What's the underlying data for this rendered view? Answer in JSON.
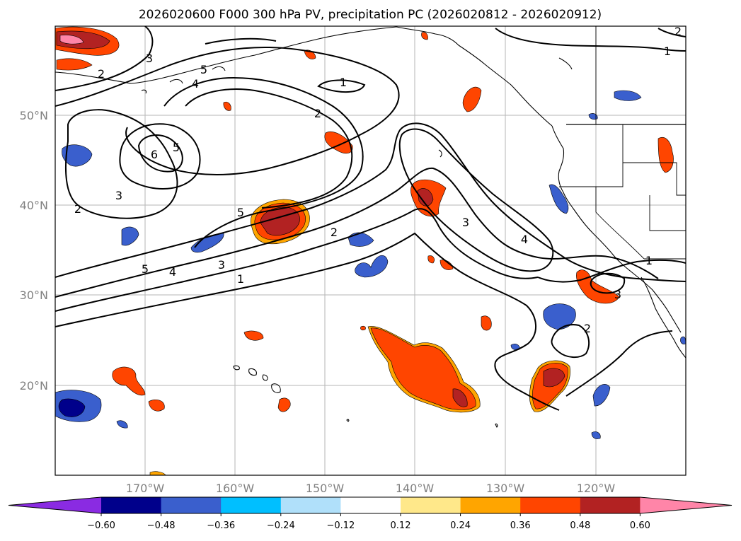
{
  "title": "2026020600 F000 300 hPa PV, precipitation PC (2026020812 - 2026020912)",
  "latitude_labels": [
    "50°N",
    "40°N",
    "30°N",
    "20°N"
  ],
  "longitude_labels": [
    "170°W",
    "160°W",
    "150°W",
    "140°W",
    "130°W",
    "120°W"
  ],
  "contour_labels": [
    "1",
    "2",
    "3",
    "4",
    "5",
    "6"
  ],
  "colorbar": {
    "ticks": [
      "−0.60",
      "−0.48",
      "−0.36",
      "−0.24",
      "−0.12",
      "0.12",
      "0.24",
      "0.36",
      "0.48",
      "0.60"
    ],
    "colors": {
      "under": "#8a2be2",
      "neg_060_048": "#00008b",
      "neg_048_036": "#3a5fcd",
      "neg_036_024": "#00bfff",
      "neg_024_012": "#b0e0fa",
      "neutral": "#ffffff",
      "pos_012_024": "#ffe88a",
      "pos_024_036": "#ffa500",
      "pos_036_048": "#ff4500",
      "pos_048_060": "#b22222",
      "over": "#ff85a8"
    }
  }
}
